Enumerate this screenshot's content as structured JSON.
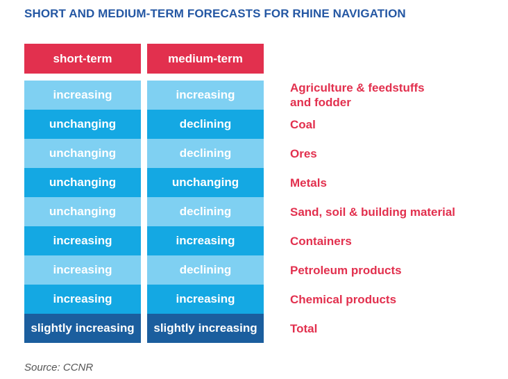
{
  "title": "SHORT AND MEDIUM-TERM FORECASTS FOR RHINE NAVIGATION",
  "chart_data": {
    "type": "table",
    "columns": [
      "short-term",
      "medium-term"
    ],
    "rows": [
      {
        "category": "Agriculture & feedstuffs\nand fodder",
        "short_term": "increasing",
        "medium_term": "increasing"
      },
      {
        "category": "Coal",
        "short_term": "unchanging",
        "medium_term": "declining"
      },
      {
        "category": "Ores",
        "short_term": "unchanging",
        "medium_term": "declining"
      },
      {
        "category": "Metals",
        "short_term": "unchanging",
        "medium_term": "unchanging"
      },
      {
        "category": "Sand, soil & building material",
        "short_term": "unchanging",
        "medium_term": "declining"
      },
      {
        "category": "Containers",
        "short_term": "increasing",
        "medium_term": "increasing"
      },
      {
        "category": "Petroleum products",
        "short_term": "increasing",
        "medium_term": "declining"
      },
      {
        "category": "Chemical products",
        "short_term": "increasing",
        "medium_term": "increasing"
      },
      {
        "category": "Total",
        "short_term": "slightly increasing",
        "medium_term": "slightly increasing"
      }
    ],
    "colors": {
      "header": "#e2304e",
      "row_light": "#7fd0f2",
      "row_dark": "#14a8e3",
      "row_total": "#1b5e9e",
      "category_text": "#e2304e",
      "title_text": "#2457a3"
    }
  },
  "source": "Source: CCNR"
}
